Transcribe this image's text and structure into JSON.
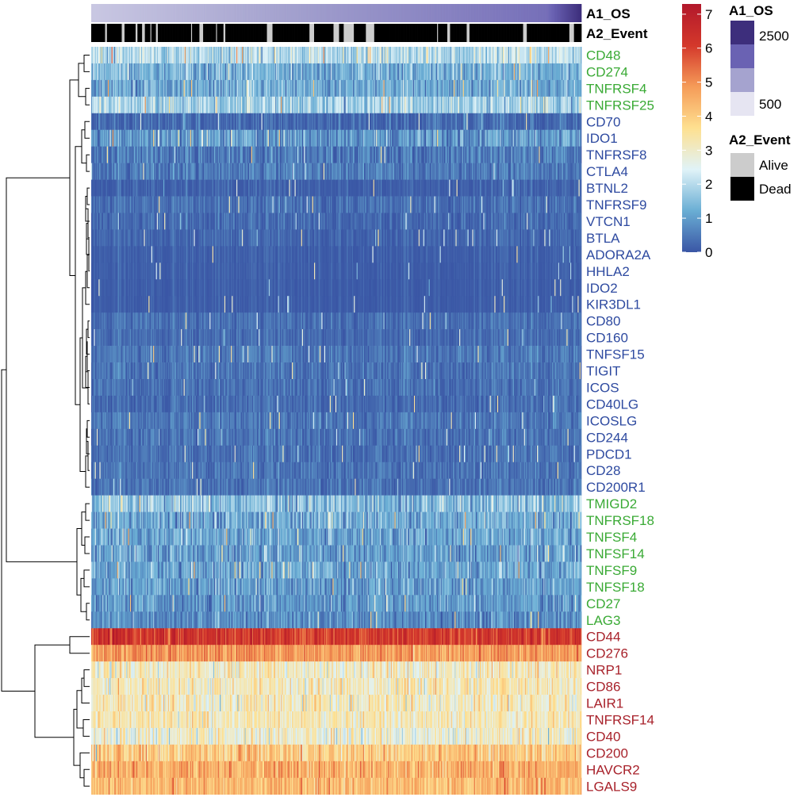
{
  "chart_data": {
    "type": "heatmap",
    "title": "",
    "color_scale": {
      "min": 0,
      "max": 7.3,
      "ticks": [
        0,
        1,
        2,
        3,
        4,
        5,
        6,
        7
      ],
      "colors": [
        "#3a56a5",
        "#6aaed4",
        "#e0f3f8",
        "#fee090",
        "#f59b58",
        "#d4382b",
        "#b2182b"
      ]
    },
    "annotations": {
      "a1": {
        "label": "A1_OS",
        "legend_title": "A1_OS",
        "min_label": "500",
        "max_label": "2500",
        "colors": [
          "#e6e5f2",
          "#a5a3cf",
          "#6a62b3",
          "#3d2e7c"
        ]
      },
      "a2": {
        "label": "A2_Event",
        "legend_title": "A2_Event",
        "levels": [
          {
            "name": "Alive",
            "color": "#cccccc"
          },
          {
            "name": "Dead",
            "color": "#000000"
          }
        ]
      }
    },
    "event_alive_columns": [
      15,
      16,
      33,
      34,
      35,
      48,
      49,
      55,
      56,
      57,
      64,
      70,
      71,
      108,
      117,
      118,
      119,
      120,
      135,
      143,
      144,
      190,
      191,
      192,
      193,
      194,
      195,
      236,
      237,
      238,
      239,
      240,
      262,
      263,
      264,
      265,
      266,
      267,
      273,
      274,
      275,
      276,
      277,
      278,
      279,
      280,
      281,
      282,
      283,
      297,
      298,
      299,
      300,
      301,
      302,
      303,
      304,
      305,
      374,
      385,
      386,
      387,
      406,
      407,
      408,
      467,
      468,
      469,
      470,
      517,
      518,
      519,
      520,
      521
    ],
    "n_samples": 530,
    "genes": [
      {
        "name": "CD48",
        "cluster": "green",
        "mean": 2.0,
        "sd": 0.45
      },
      {
        "name": "CD274",
        "cluster": "green",
        "mean": 1.3,
        "sd": 0.45
      },
      {
        "name": "TNFRSF4",
        "cluster": "green",
        "mean": 1.2,
        "sd": 0.4
      },
      {
        "name": "TNFRSF25",
        "cluster": "green",
        "mean": 1.8,
        "sd": 0.45
      },
      {
        "name": "CD70",
        "cluster": "blue",
        "mean": 0.2,
        "sd": 0.35
      },
      {
        "name": "IDO1",
        "cluster": "blue",
        "mean": 0.9,
        "sd": 0.45
      },
      {
        "name": "TNFRSF8",
        "cluster": "blue",
        "mean": 0.5,
        "sd": 0.35
      },
      {
        "name": "CTLA4",
        "cluster": "blue",
        "mean": 0.5,
        "sd": 0.3
      },
      {
        "name": "BTNL2",
        "cluster": "blue",
        "mean": 0.1,
        "sd": 0.15
      },
      {
        "name": "TNFRSF9",
        "cluster": "blue",
        "mean": 0.35,
        "sd": 0.2
      },
      {
        "name": "VTCN1",
        "cluster": "blue",
        "mean": 0.25,
        "sd": 0.2
      },
      {
        "name": "BTLA",
        "cluster": "blue",
        "mean": 0.2,
        "sd": 0.12
      },
      {
        "name": "ADORA2A",
        "cluster": "blue",
        "mean": 0.1,
        "sd": 0.05
      },
      {
        "name": "HHLA2",
        "cluster": "blue",
        "mean": 0.08,
        "sd": 0.04
      },
      {
        "name": "IDO2",
        "cluster": "blue",
        "mean": 0.05,
        "sd": 0.03
      },
      {
        "name": "KIR3DL1",
        "cluster": "blue",
        "mean": 0.05,
        "sd": 0.03
      },
      {
        "name": "CD80",
        "cluster": "blue",
        "mean": 0.35,
        "sd": 0.15
      },
      {
        "name": "CD160",
        "cluster": "blue",
        "mean": 0.3,
        "sd": 0.12
      },
      {
        "name": "TNFSF15",
        "cluster": "blue",
        "mean": 0.45,
        "sd": 0.2
      },
      {
        "name": "TIGIT",
        "cluster": "blue",
        "mean": 0.4,
        "sd": 0.2
      },
      {
        "name": "ICOS",
        "cluster": "blue",
        "mean": 0.35,
        "sd": 0.2
      },
      {
        "name": "CD40LG",
        "cluster": "blue",
        "mean": 0.3,
        "sd": 0.18
      },
      {
        "name": "ICOSLG",
        "cluster": "blue",
        "mean": 0.45,
        "sd": 0.22
      },
      {
        "name": "CD244",
        "cluster": "blue",
        "mean": 0.4,
        "sd": 0.2
      },
      {
        "name": "PDCD1",
        "cluster": "blue",
        "mean": 0.35,
        "sd": 0.2
      },
      {
        "name": "CD28",
        "cluster": "blue",
        "mean": 0.4,
        "sd": 0.2
      },
      {
        "name": "CD200R1",
        "cluster": "blue",
        "mean": 0.4,
        "sd": 0.22
      },
      {
        "name": "TMIGD2",
        "cluster": "green",
        "mean": 1.5,
        "sd": 0.55
      },
      {
        "name": "TNFRSF18",
        "cluster": "green",
        "mean": 1.2,
        "sd": 0.5
      },
      {
        "name": "TNFSF4",
        "cluster": "green",
        "mean": 1.1,
        "sd": 0.45
      },
      {
        "name": "TNFSF14",
        "cluster": "green",
        "mean": 1.0,
        "sd": 0.45
      },
      {
        "name": "TNFSF9",
        "cluster": "green",
        "mean": 1.1,
        "sd": 0.45
      },
      {
        "name": "TNFSF18",
        "cluster": "green",
        "mean": 1.0,
        "sd": 0.4
      },
      {
        "name": "CD27",
        "cluster": "green",
        "mean": 0.9,
        "sd": 0.4
      },
      {
        "name": "LAG3",
        "cluster": "green",
        "mean": 0.8,
        "sd": 0.35
      },
      {
        "name": "CD44",
        "cluster": "red",
        "mean": 6.2,
        "sd": 0.45
      },
      {
        "name": "CD276",
        "cluster": "red",
        "mean": 4.8,
        "sd": 0.4
      },
      {
        "name": "NRP1",
        "cluster": "red",
        "mean": 3.1,
        "sd": 0.55
      },
      {
        "name": "CD86",
        "cluster": "red",
        "mean": 3.2,
        "sd": 0.5
      },
      {
        "name": "LAIR1",
        "cluster": "red",
        "mean": 3.1,
        "sd": 0.5
      },
      {
        "name": "TNFRSF14",
        "cluster": "red",
        "mean": 3.2,
        "sd": 0.45
      },
      {
        "name": "CD40",
        "cluster": "red",
        "mean": 2.9,
        "sd": 0.55
      },
      {
        "name": "CD200",
        "cluster": "red",
        "mean": 4.0,
        "sd": 0.5
      },
      {
        "name": "HAVCR2",
        "cluster": "red",
        "mean": 4.5,
        "sd": 0.45
      },
      {
        "name": "LGALS9",
        "cluster": "red",
        "mean": 4.3,
        "sd": 0.45
      }
    ],
    "label_colors": {
      "green": "#3aaa35",
      "blue": "#2e4aa0",
      "red": "#a8222b"
    }
  }
}
